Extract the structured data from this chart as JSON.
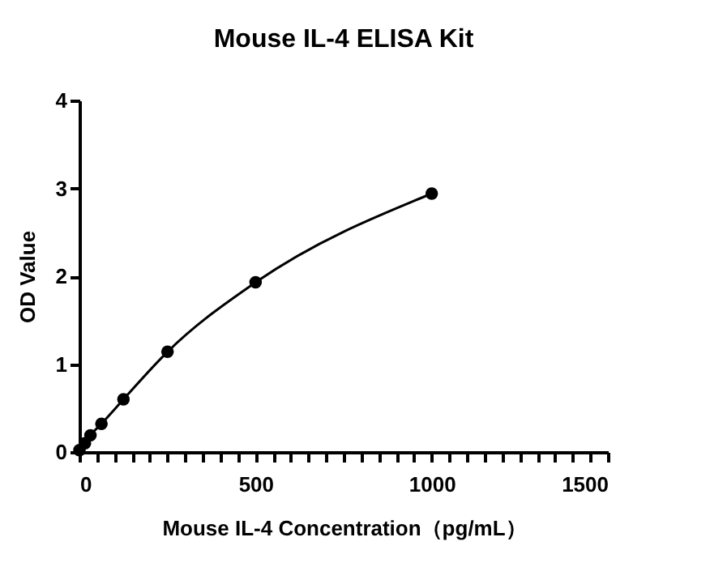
{
  "chart_data": {
    "type": "line",
    "title": "Mouse IL-4 ELISA Kit",
    "xlabel": "Mouse IL-4 Concentration（pg/mL）",
    "ylabel": "OD Value",
    "x": [
      0,
      15.6,
      31.25,
      62.5,
      125,
      250,
      500,
      1000
    ],
    "series": [
      {
        "color": "#000000",
        "values": [
          0.02,
          0.1,
          0.19,
          0.32,
          0.6,
          1.14,
          1.93,
          2.94
        ]
      }
    ],
    "marker": "circle",
    "line_style": "solid",
    "grid": false,
    "legend": false,
    "xlim": [
      0,
      1500
    ],
    "ylim": [
      0,
      4
    ],
    "xticks": [
      0,
      {
        "value": 50,
        "label": null
      },
      {
        "value": 100,
        "label": null
      },
      {
        "value": 150,
        "label": null
      },
      {
        "value": 200,
        "label": null
      },
      {
        "value": 250,
        "label": null
      },
      {
        "value": 300,
        "label": null
      },
      {
        "value": 350,
        "label": null
      },
      {
        "value": 400,
        "label": null
      },
      {
        "value": 450,
        "label": null
      },
      500,
      {
        "value": 550,
        "label": null
      },
      {
        "value": 600,
        "label": null
      },
      {
        "value": 650,
        "label": null
      },
      {
        "value": 700,
        "label": null
      },
      {
        "value": 750,
        "label": null
      },
      {
        "value": 800,
        "label": null
      },
      {
        "value": 850,
        "label": null
      },
      {
        "value": 900,
        "label": null
      },
      {
        "value": 950,
        "label": null
      },
      1000,
      {
        "value": 1050,
        "label": null
      },
      {
        "value": 1100,
        "label": null
      },
      {
        "value": 1150,
        "label": null
      },
      {
        "value": 1200,
        "label": null
      },
      {
        "value": 1250,
        "label": null
      },
      {
        "value": 1300,
        "label": null
      },
      {
        "value": 1350,
        "label": null
      },
      {
        "value": 1400,
        "label": null
      },
      {
        "value": 1450,
        "label": null
      },
      1500
    ],
    "yticks": [
      0,
      1,
      2,
      3,
      4
    ]
  }
}
